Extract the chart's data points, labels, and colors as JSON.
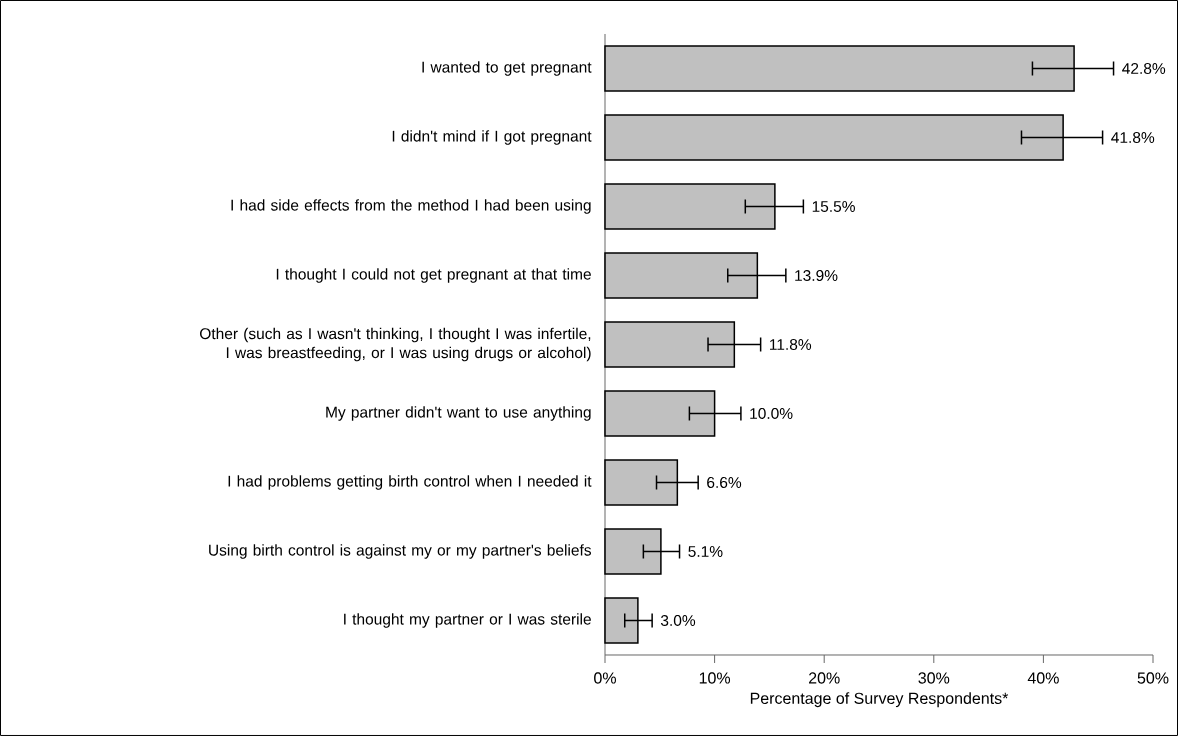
{
  "chart_data": {
    "type": "bar",
    "orientation": "horizontal",
    "xlabel": "Percentage of Survey Respondents*",
    "categories": [
      "I wanted to get pregnant",
      "I didn't mind if I got pregnant",
      "I had side effects from the method I had been using",
      "I thought I could not get pregnant at that time",
      "Other (such as I wasn't thinking, I thought I was infertile, I was breastfeeding, or I was using drugs or alcohol)",
      "My partner didn't want to use anything",
      "I had problems getting birth control when I needed it",
      "Using birth control is against my or my partner's beliefs",
      "I thought my partner or I was sterile"
    ],
    "values": [
      42.8,
      41.8,
      15.5,
      13.9,
      11.8,
      10.0,
      6.6,
      5.1,
      3.0
    ],
    "errors": [
      [
        39.0,
        46.4
      ],
      [
        38.0,
        45.4
      ],
      [
        12.8,
        18.1
      ],
      [
        11.2,
        16.5
      ],
      [
        9.4,
        14.2
      ],
      [
        7.7,
        12.4
      ],
      [
        4.7,
        8.5
      ],
      [
        3.5,
        6.8
      ],
      [
        1.8,
        4.3
      ]
    ],
    "value_labels": [
      "42.8%",
      "41.8%",
      "15.5%",
      "13.9%",
      "11.8%",
      "10.0%",
      "6.6%",
      "5.1%",
      "3.0%"
    ],
    "color": "#c0c0c0",
    "xlim": [
      0,
      50
    ],
    "xticks": [
      {
        "value": 0,
        "label": "0%"
      },
      {
        "value": 10,
        "label": "10%"
      },
      {
        "value": 20,
        "label": "20%"
      },
      {
        "value": 30,
        "label": "30%"
      },
      {
        "value": 40,
        "label": "40%"
      },
      {
        "value": 50,
        "label": "50%"
      }
    ]
  }
}
